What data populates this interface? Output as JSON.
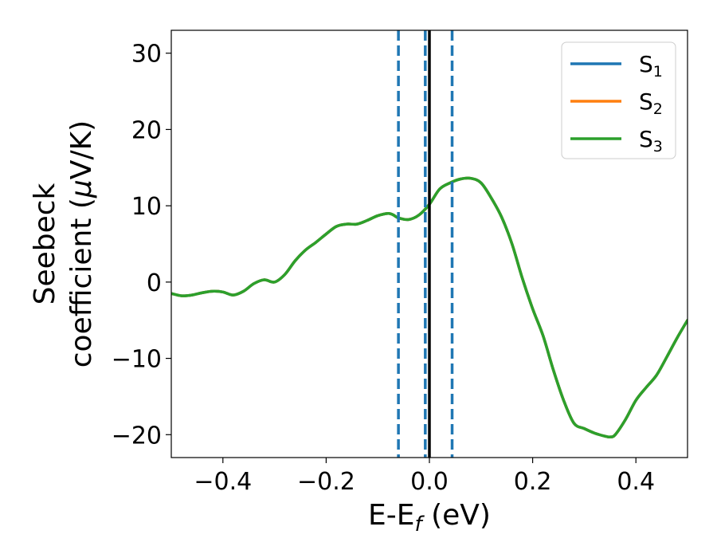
{
  "chart_data": {
    "type": "line",
    "title": "",
    "xlabel": {
      "main": "E-E",
      "sub": "f",
      "suffix": " (eV)"
    },
    "ylabel": {
      "line1": "Seebeck",
      "line2_pre": "coefficient  (",
      "mu": "μ",
      "line2_post": "V/K)"
    },
    "xlim": [
      -0.5,
      0.5
    ],
    "ylim": [
      -23,
      33
    ],
    "xticks": [
      {
        "value": -0.4,
        "label": "−0.4"
      },
      {
        "value": -0.2,
        "label": "−0.2"
      },
      {
        "value": 0.0,
        "label": "0.0"
      },
      {
        "value": 0.2,
        "label": "0.2"
      },
      {
        "value": 0.4,
        "label": "0.4"
      }
    ],
    "yticks": [
      {
        "value": -20,
        "label": "−20"
      },
      {
        "value": -10,
        "label": "−10"
      },
      {
        "value": 0,
        "label": "0"
      },
      {
        "value": 10,
        "label": "10"
      },
      {
        "value": 20,
        "label": "20"
      },
      {
        "value": 30,
        "label": "30"
      }
    ],
    "legend_position": "top-right",
    "grid": false,
    "x": [
      -0.5,
      -0.48,
      -0.46,
      -0.44,
      -0.42,
      -0.4,
      -0.38,
      -0.36,
      -0.34,
      -0.32,
      -0.3,
      -0.28,
      -0.26,
      -0.24,
      -0.22,
      -0.2,
      -0.18,
      -0.16,
      -0.14,
      -0.12,
      -0.1,
      -0.08,
      -0.07,
      -0.06,
      -0.04,
      -0.02,
      0.0,
      0.02,
      0.04,
      0.06,
      0.08,
      0.1,
      0.12,
      0.14,
      0.16,
      0.18,
      0.2,
      0.22,
      0.24,
      0.26,
      0.28,
      0.3,
      0.32,
      0.34,
      0.35,
      0.36,
      0.38,
      0.4,
      0.42,
      0.44,
      0.46,
      0.48,
      0.5
    ],
    "series": [
      {
        "name": "S",
        "sub": "1",
        "color": "#1f77b4",
        "values": [
          -1.5,
          -1.8,
          -1.7,
          -1.4,
          -1.2,
          -1.3,
          -1.7,
          -1.2,
          -0.2,
          0.3,
          0.0,
          1.0,
          2.8,
          4.2,
          5.2,
          6.3,
          7.3,
          7.6,
          7.6,
          8.1,
          8.7,
          9.0,
          8.8,
          8.4,
          8.2,
          8.8,
          10.2,
          12.2,
          13.0,
          13.5,
          13.6,
          13.0,
          11.0,
          8.5,
          5.0,
          0.5,
          -3.5,
          -7.0,
          -11.5,
          -15.5,
          -18.5,
          -19.2,
          -19.8,
          -20.2,
          -20.3,
          -20.0,
          -18.0,
          -15.5,
          -13.8,
          -12.2,
          -9.8,
          -7.3,
          -5.0
        ]
      },
      {
        "name": "S",
        "sub": "2",
        "color": "#ff7f0e",
        "values": [
          -1.5,
          -1.8,
          -1.7,
          -1.4,
          -1.2,
          -1.3,
          -1.7,
          -1.2,
          -0.2,
          0.3,
          0.0,
          1.0,
          2.8,
          4.2,
          5.2,
          6.3,
          7.3,
          7.6,
          7.6,
          8.1,
          8.7,
          9.0,
          8.8,
          8.4,
          8.2,
          8.8,
          10.2,
          12.2,
          13.0,
          13.5,
          13.6,
          13.0,
          11.0,
          8.5,
          5.0,
          0.5,
          -3.5,
          -7.0,
          -11.5,
          -15.5,
          -18.5,
          -19.2,
          -19.8,
          -20.2,
          -20.3,
          -20.0,
          -18.0,
          -15.5,
          -13.8,
          -12.2,
          -9.8,
          -7.3,
          -5.0
        ]
      },
      {
        "name": "S",
        "sub": "3",
        "color": "#2ca02c",
        "values": [
          -1.5,
          -1.8,
          -1.7,
          -1.4,
          -1.2,
          -1.3,
          -1.7,
          -1.2,
          -0.2,
          0.3,
          0.0,
          1.0,
          2.8,
          4.2,
          5.2,
          6.3,
          7.3,
          7.6,
          7.6,
          8.1,
          8.7,
          9.0,
          8.8,
          8.4,
          8.2,
          8.8,
          10.2,
          12.2,
          13.0,
          13.5,
          13.6,
          13.0,
          11.0,
          8.5,
          5.0,
          0.5,
          -3.5,
          -7.0,
          -11.5,
          -15.5,
          -18.5,
          -19.2,
          -19.8,
          -20.2,
          -20.3,
          -20.0,
          -18.0,
          -15.5,
          -13.8,
          -12.2,
          -9.8,
          -7.3,
          -5.0
        ]
      }
    ],
    "vlines": [
      {
        "x": -0.06,
        "style": "dashed",
        "color": "#1f77b4"
      },
      {
        "x": -0.008,
        "style": "dashed",
        "color": "#1f77b4"
      },
      {
        "x": 0.044,
        "style": "dashed",
        "color": "#1f77b4"
      },
      {
        "x": 0.0,
        "style": "solid",
        "color": "#000000"
      }
    ]
  }
}
